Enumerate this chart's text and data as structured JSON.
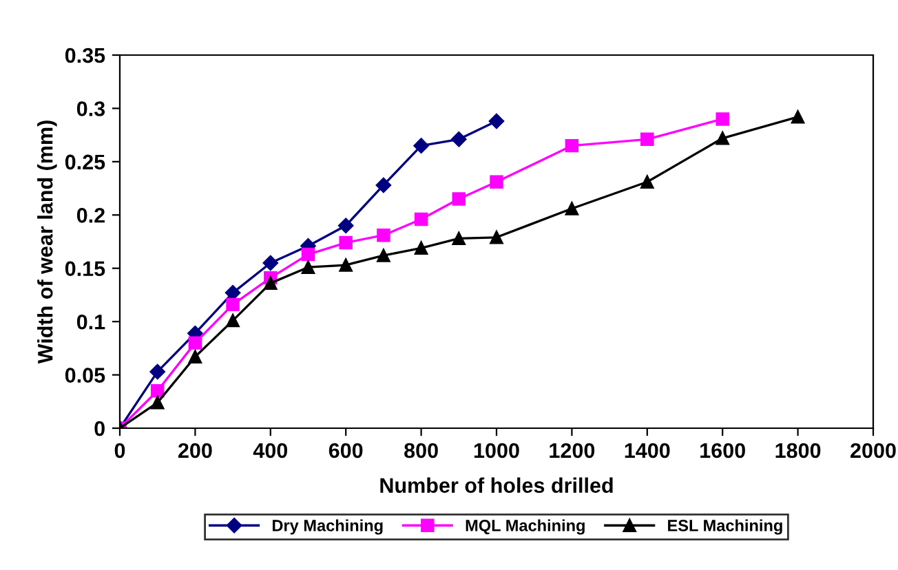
{
  "chart_data": {
    "type": "line",
    "xlabel": "Number of holes drilled",
    "ylabel": "Width of wear land (mm)",
    "xlim": [
      0,
      2000
    ],
    "xticks": [
      0,
      200,
      400,
      600,
      800,
      1000,
      1200,
      1400,
      1600,
      1800,
      2000
    ],
    "ylim": [
      0,
      0.35
    ],
    "yticks": [
      0,
      0.05,
      0.1,
      0.15,
      0.2,
      0.25,
      0.3,
      0.35
    ],
    "grid": false,
    "legend": "bottom",
    "line_style": "solid",
    "series": [
      {
        "name": "Dry Machining",
        "color": "#000080",
        "marker": "diamond",
        "x": [
          0,
          100,
          200,
          300,
          400,
          500,
          600,
          700,
          800,
          900,
          1000
        ],
        "values": [
          0,
          0.053,
          0.089,
          0.127,
          0.155,
          0.171,
          0.19,
          0.228,
          0.265,
          0.271,
          0.288
        ]
      },
      {
        "name": "MQL Machining",
        "color": "#ff00ff",
        "marker": "square",
        "x": [
          0,
          100,
          200,
          300,
          400,
          500,
          600,
          700,
          800,
          900,
          1000,
          1200,
          1400,
          1600
        ],
        "values": [
          0,
          0.035,
          0.08,
          0.116,
          0.141,
          0.163,
          0.174,
          0.181,
          0.196,
          0.215,
          0.231,
          0.265,
          0.271,
          0.29
        ]
      },
      {
        "name": "ESL Machining",
        "color": "#000000",
        "marker": "triangle",
        "x": [
          0,
          100,
          200,
          300,
          400,
          500,
          600,
          700,
          800,
          900,
          1000,
          1200,
          1400,
          1600,
          1800
        ],
        "values": [
          0,
          0.024,
          0.067,
          0.101,
          0.136,
          0.151,
          0.153,
          0.162,
          0.169,
          0.178,
          0.179,
          0.206,
          0.231,
          0.272,
          0.292
        ]
      }
    ]
  }
}
